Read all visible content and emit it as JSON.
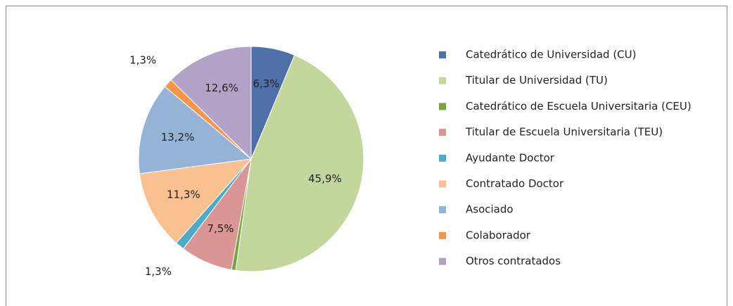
{
  "chart_data": {
    "type": "pie",
    "categories": [
      "Catedrático de Universidad (CU)",
      "Titular de Universidad (TU)",
      "Catedrático de Escuela Universitaria (CEU)",
      "Titular de Escuela Universitaria (TEU)",
      "Ayudante Doctor",
      "Contratado Doctor",
      "Asociado",
      "Colaborador",
      "Otros contratados"
    ],
    "values": [
      6.3,
      45.9,
      0.6,
      7.5,
      1.3,
      11.3,
      13.2,
      1.3,
      12.6
    ],
    "value_labels": [
      "6,3%",
      "45,9%",
      null,
      "7,5%",
      "1,3%",
      "11,3%",
      "13,2%",
      "1,3%",
      "12,6%"
    ],
    "colors": [
      "#4f6fa8",
      "#c3d69b",
      "#77a33d",
      "#d99694",
      "#4bacc6",
      "#fac090",
      "#95b3d7",
      "#f79646",
      "#b3a2c7"
    ],
    "legend": "right"
  }
}
